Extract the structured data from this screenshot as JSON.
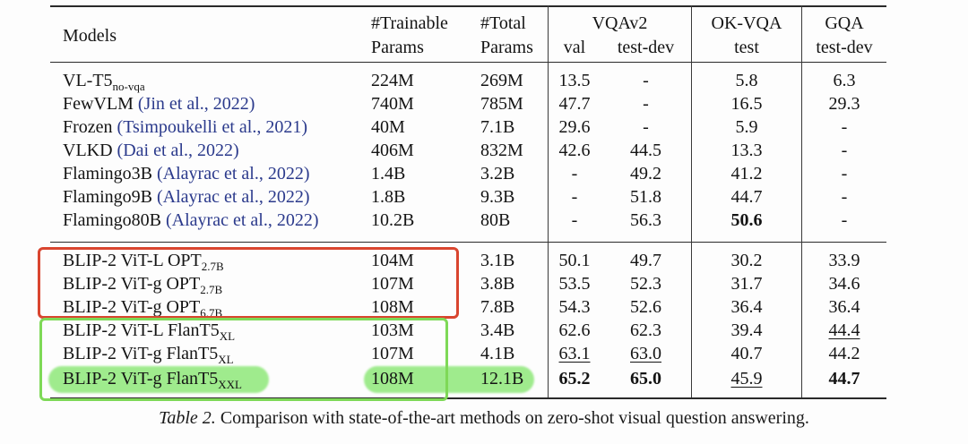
{
  "header": {
    "models": "Models",
    "trainable_1": "#Trainable",
    "trainable_2": "Params",
    "total_1": "#Total",
    "total_2": "Params",
    "vqav2": "VQAv2",
    "okvqa": "OK-VQA",
    "gqa": "GQA",
    "val": "val",
    "testdev": "test-dev",
    "test": "test",
    "gqa_testdev": "test-dev"
  },
  "rows": [
    {
      "name": "VL-T5",
      "sub": "no-vqa",
      "cite": "",
      "trainable": "224M",
      "total": "269M",
      "val": "13.5",
      "testdev": "-",
      "okvqa": "5.8",
      "gqa": "6.3"
    },
    {
      "name": "FewVLM ",
      "sub": "",
      "cite": "(Jin et al., 2022)",
      "trainable": "740M",
      "total": "785M",
      "val": "47.7",
      "testdev": "-",
      "okvqa": "16.5",
      "gqa": "29.3"
    },
    {
      "name": "Frozen ",
      "sub": "",
      "cite": "(Tsimpoukelli et al., 2021)",
      "trainable": "40M",
      "total": "7.1B",
      "val": "29.6",
      "testdev": "-",
      "okvqa": "5.9",
      "gqa": "-"
    },
    {
      "name": "VLKD ",
      "sub": "",
      "cite": "(Dai et al., 2022)",
      "trainable": "406M",
      "total": "832M",
      "val": "42.6",
      "testdev": "44.5",
      "okvqa": "13.3",
      "gqa": "-"
    },
    {
      "name": "Flamingo3B ",
      "sub": "",
      "cite": "(Alayrac et al., 2022)",
      "trainable": "1.4B",
      "total": "3.2B",
      "val": "-",
      "testdev": "49.2",
      "okvqa": "41.2",
      "gqa": "-"
    },
    {
      "name": "Flamingo9B ",
      "sub": "",
      "cite": "(Alayrac et al., 2022)",
      "trainable": "1.8B",
      "total": "9.3B",
      "val": "-",
      "testdev": "51.8",
      "okvqa": "44.7",
      "gqa": "-"
    },
    {
      "name": "Flamingo80B ",
      "sub": "",
      "cite": "(Alayrac et al., 2022)",
      "trainable": "10.2B",
      "total": "80B",
      "val": "-",
      "testdev": "56.3",
      "okvqa": "50.6",
      "gqa": "-"
    },
    {
      "name": "BLIP-2 ViT-L OPT",
      "sub": "2.7B",
      "cite": "",
      "trainable": "104M",
      "total": "3.1B",
      "val": "50.1",
      "testdev": "49.7",
      "okvqa": "30.2",
      "gqa": "33.9"
    },
    {
      "name": "BLIP-2 ViT-g OPT",
      "sub": "2.7B",
      "cite": "",
      "trainable": "107M",
      "total": "3.8B",
      "val": "53.5",
      "testdev": "52.3",
      "okvqa": "31.7",
      "gqa": "34.6"
    },
    {
      "name": "BLIP-2 ViT-g OPT",
      "sub": "6.7B",
      "cite": "",
      "trainable": "108M",
      "total": "7.8B",
      "val": "54.3",
      "testdev": "52.6",
      "okvqa": "36.4",
      "gqa": "36.4"
    },
    {
      "name": "BLIP-2 ViT-L FlanT5",
      "sub": "XL",
      "cite": "",
      "trainable": "103M",
      "total": "3.4B",
      "val": "62.6",
      "testdev": "62.3",
      "okvqa": "39.4",
      "gqa": "44.4"
    },
    {
      "name": "BLIP-2 ViT-g FlanT5",
      "sub": "XL",
      "cite": "",
      "trainable": "107M",
      "total": "4.1B",
      "val": "63.1",
      "testdev": "63.0",
      "okvqa": "40.7",
      "gqa": "44.2"
    },
    {
      "name": "BLIP-2 ViT-g FlanT5",
      "sub": "XXL",
      "cite": "",
      "trainable": "108M",
      "total": "12.1B",
      "val": "65.2",
      "testdev": "65.0",
      "okvqa": "45.9",
      "gqa": "44.7"
    }
  ],
  "caption": {
    "label": "Table 2.",
    "text": " Comparison with state-of-the-art methods on zero-shot visual question answering."
  },
  "annotation_colors": {
    "red_box": "#d9452f",
    "green_box": "#7ed957",
    "highlight": "#8fe87a",
    "citation": "#2b3a8c"
  }
}
